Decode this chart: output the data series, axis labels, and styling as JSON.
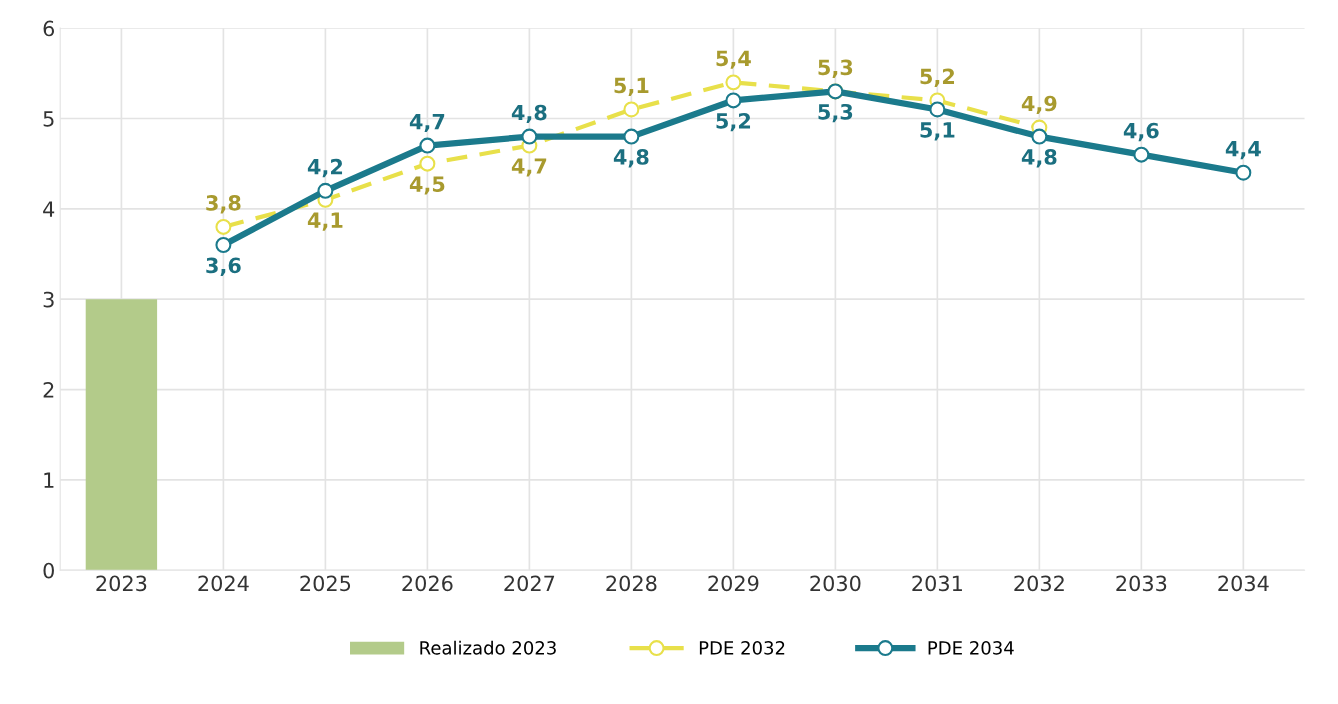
{
  "chart_data": {
    "type": "line",
    "categories": [
      "2023",
      "2024",
      "2025",
      "2026",
      "2027",
      "2028",
      "2029",
      "2030",
      "2031",
      "2032",
      "2033",
      "2034"
    ],
    "series": [
      {
        "name": "Realizado 2023",
        "type": "bar",
        "color": "#b3cb8a",
        "values": [
          3,
          null,
          null,
          null,
          null,
          null,
          null,
          null,
          null,
          null,
          null,
          null
        ]
      },
      {
        "name": "PDE 2032",
        "color": "#e8e04a",
        "line_style": "dashed",
        "marker": "circle",
        "values": [
          null,
          3.8,
          4.1,
          4.5,
          4.7,
          5.1,
          5.4,
          5.3,
          5.2,
          4.9,
          null,
          null
        ],
        "value_labels": [
          null,
          "3,8",
          "4,1",
          "4,5",
          "4,7",
          "5,1",
          "5,4",
          "5,3",
          "5,2",
          "4,9",
          null,
          null
        ]
      },
      {
        "name": "PDE 2034",
        "color": "#1b7a8c",
        "line_style": "solid",
        "marker": "circle",
        "values": [
          null,
          3.6,
          4.2,
          4.7,
          4.8,
          4.8,
          5.2,
          5.3,
          5.1,
          4.8,
          4.6,
          4.4
        ],
        "value_labels": [
          null,
          "3,6",
          "4,2",
          "4,7",
          "4,8",
          "4,8",
          "5,2",
          "5,3",
          "5,1",
          "4,8",
          "4,6",
          "4,4"
        ]
      }
    ],
    "ylim": [
      0,
      6
    ],
    "yticks": [
      0,
      1,
      2,
      3,
      4,
      5,
      6
    ],
    "grid": true,
    "legend": "bottom"
  }
}
